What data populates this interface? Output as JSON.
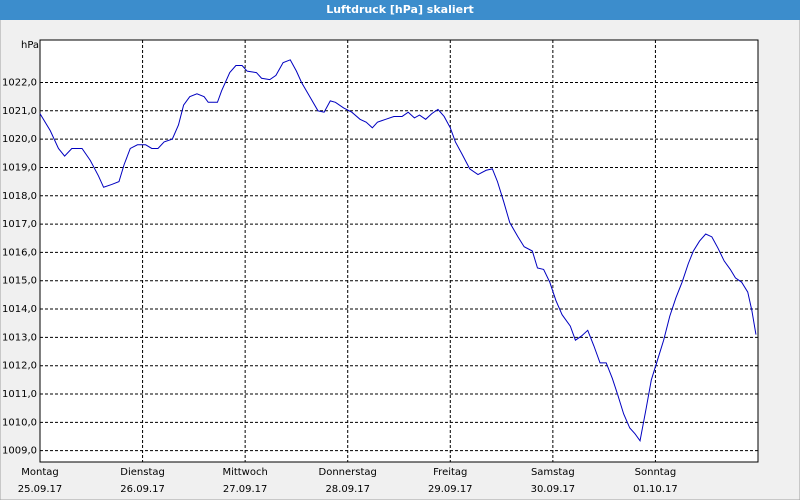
{
  "window_title": "Luftdruck [hPa] skaliert",
  "chart_data": {
    "type": "line",
    "ylabel": "hPa",
    "grid": true,
    "xlim": [
      0,
      7
    ],
    "ylim": [
      1008.6,
      1023.5
    ],
    "xticks": [
      {
        "value": 0,
        "label": "Montag",
        "sublabel": "25.09.17"
      },
      {
        "value": 1,
        "label": "Dienstag",
        "sublabel": "26.09.17"
      },
      {
        "value": 2,
        "label": "Mittwoch",
        "sublabel": "27.09.17"
      },
      {
        "value": 3,
        "label": "Donnerstag",
        "sublabel": "28.09.17"
      },
      {
        "value": 4,
        "label": "Freitag",
        "sublabel": "29.09.17"
      },
      {
        "value": 5,
        "label": "Samstag",
        "sublabel": "30.09.17"
      },
      {
        "value": 6,
        "label": "Sonntag",
        "sublabel": "01.10.17"
      }
    ],
    "yticks": [
      {
        "value": 1009,
        "label": "1009,0"
      },
      {
        "value": 1010,
        "label": "1010,0"
      },
      {
        "value": 1011,
        "label": "1011,0"
      },
      {
        "value": 1012,
        "label": "1012,0"
      },
      {
        "value": 1013,
        "label": "1013,0"
      },
      {
        "value": 1014,
        "label": "1014,0"
      },
      {
        "value": 1015,
        "label": "1015,0"
      },
      {
        "value": 1016,
        "label": "1016,0"
      },
      {
        "value": 1017,
        "label": "1017,0"
      },
      {
        "value": 1018,
        "label": "1018,0"
      },
      {
        "value": 1019,
        "label": "1019,0"
      },
      {
        "value": 1020,
        "label": "1020,0"
      },
      {
        "value": 1021,
        "label": "1021,0"
      },
      {
        "value": 1022,
        "label": "1022,0"
      }
    ],
    "series": [
      {
        "name": "Luftdruck",
        "color": "#0000c0",
        "x": [
          0,
          0.1,
          0.18,
          0.24,
          0.31,
          0.41,
          0.49,
          0.57,
          0.62,
          0.7,
          0.77,
          0.82,
          0.88,
          0.95,
          1.03,
          1.09,
          1.15,
          1.21,
          1.29,
          1.35,
          1.4,
          1.46,
          1.53,
          1.6,
          1.64,
          1.73,
          1.77,
          1.85,
          1.91,
          1.97,
          2.02,
          2.11,
          2.16,
          2.24,
          2.3,
          2.37,
          2.44,
          2.5,
          2.55,
          2.63,
          2.71,
          2.77,
          2.83,
          2.88,
          2.96,
          3.04,
          3.12,
          3.18,
          3.24,
          3.29,
          3.37,
          3.45,
          3.53,
          3.59,
          3.65,
          3.7,
          3.76,
          3.82,
          3.88,
          3.94,
          4.0,
          4.05,
          4.11,
          4.19,
          4.27,
          4.35,
          4.41,
          4.46,
          4.52,
          4.58,
          4.66,
          4.72,
          4.8,
          4.85,
          4.91,
          4.97,
          5.03,
          5.09,
          5.17,
          5.22,
          5.28,
          5.34,
          5.4,
          5.46,
          5.52,
          5.58,
          5.63,
          5.69,
          5.75,
          5.8,
          5.85,
          5.91,
          5.96,
          6.02,
          6.08,
          6.14,
          6.2,
          6.26,
          6.32,
          6.37,
          6.43,
          6.49,
          6.55,
          6.61,
          6.67,
          6.73,
          6.78,
          6.84,
          6.9,
          6.94,
          6.98
        ],
        "values": [
          1020.9,
          1020.3,
          1019.67,
          1019.4,
          1019.67,
          1019.67,
          1019.25,
          1018.7,
          1018.3,
          1018.4,
          1018.5,
          1019.1,
          1019.67,
          1019.8,
          1019.8,
          1019.67,
          1019.67,
          1019.9,
          1020.0,
          1020.5,
          1021.2,
          1021.5,
          1021.6,
          1021.5,
          1021.3,
          1021.3,
          1021.7,
          1022.35,
          1022.6,
          1022.6,
          1022.4,
          1022.35,
          1022.15,
          1022.1,
          1022.25,
          1022.7,
          1022.8,
          1022.4,
          1022.0,
          1021.5,
          1021.0,
          1020.95,
          1021.35,
          1021.3,
          1021.1,
          1020.95,
          1020.7,
          1020.6,
          1020.4,
          1020.6,
          1020.7,
          1020.8,
          1020.8,
          1020.95,
          1020.75,
          1020.85,
          1020.7,
          1020.9,
          1021.05,
          1020.8,
          1020.4,
          1019.9,
          1019.5,
          1018.95,
          1018.75,
          1018.9,
          1018.95,
          1018.5,
          1017.8,
          1017.05,
          1016.55,
          1016.2,
          1016.05,
          1015.45,
          1015.4,
          1014.95,
          1014.3,
          1013.8,
          1013.4,
          1012.9,
          1013.05,
          1013.25,
          1012.7,
          1012.1,
          1012.1,
          1011.55,
          1011.0,
          1010.3,
          1009.8,
          1009.6,
          1009.35,
          1010.5,
          1011.5,
          1012.2,
          1012.9,
          1013.75,
          1014.4,
          1014.95,
          1015.6,
          1016.05,
          1016.4,
          1016.65,
          1016.55,
          1016.15,
          1015.7,
          1015.4,
          1015.1,
          1014.95,
          1014.6,
          1013.95,
          1013.1
        ]
      }
    ]
  }
}
